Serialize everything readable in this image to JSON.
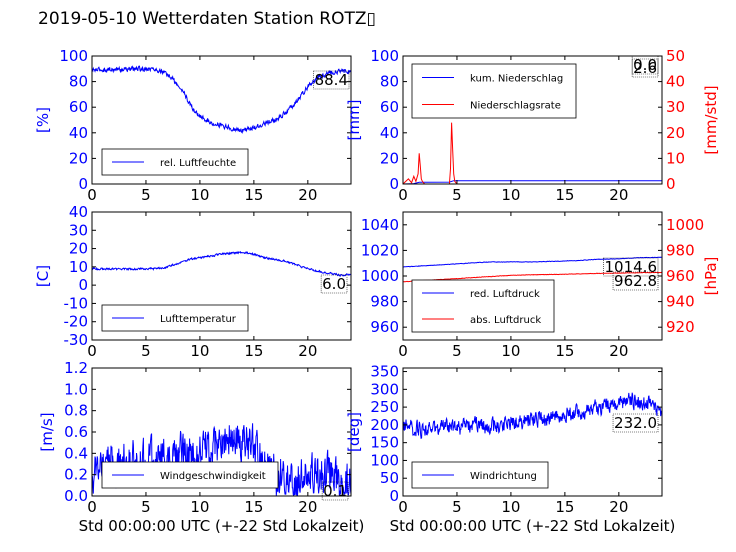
{
  "page": {
    "title": "2019-05-10 Wetterdaten Station ROTZ▯",
    "xlabel": "Std 00:00:00 UTC (+-22 Std Lokalzeit)",
    "xlim": [
      0,
      24
    ],
    "xticks": [
      0,
      5,
      10,
      15,
      20
    ]
  },
  "colors": {
    "blue": "#0000ff",
    "red": "#ff0000"
  },
  "chart_data": [
    {
      "type": "line",
      "ylabel": "[%]",
      "ylim": [
        0,
        100
      ],
      "yticks": [
        0,
        20,
        40,
        60,
        80,
        100
      ],
      "value_label": "88.4",
      "series": [
        {
          "name": "rel. Luftfeuchte",
          "color": "#0000ff",
          "x": [
            0,
            2,
            4,
            5.5,
            6.5,
            7.5,
            8,
            8.5,
            9,
            9.5,
            10,
            11,
            12,
            13,
            14,
            15,
            16,
            17,
            18,
            19,
            20,
            21,
            22,
            23,
            24
          ],
          "y": [
            89,
            89.5,
            90,
            90,
            88,
            82,
            76,
            72,
            63,
            57,
            53,
            48,
            46,
            43,
            42,
            44,
            47,
            50,
            56,
            65,
            76,
            84,
            87,
            88,
            88.4
          ],
          "noise": 2.5
        }
      ]
    },
    {
      "type": "line",
      "ylabel": "[mm]",
      "ylim": [
        0,
        100
      ],
      "yticks": [
        0,
        20,
        40,
        60,
        80,
        100
      ],
      "y2label": "[mm/std]",
      "y2lim": [
        0,
        50
      ],
      "y2ticks": [
        0,
        10,
        20,
        30,
        40,
        50
      ],
      "value_label": "2.6",
      "value_label2": "0.0",
      "series": [
        {
          "name": "kum. Niederschlag",
          "color": "#0000ff",
          "axis": "left",
          "x": [
            0,
            1,
            1.5,
            4.3,
            4.7,
            24
          ],
          "y": [
            0,
            0.3,
            1.3,
            1.5,
            2.6,
            2.6
          ],
          "noise": 0
        },
        {
          "name": "Niederschlagsrate",
          "color": "#ff0000",
          "axis": "right",
          "x": [
            0,
            0.5,
            0.8,
            1.0,
            1.2,
            1.4,
            1.5,
            1.6,
            1.7,
            1.8,
            2.0,
            4.3,
            4.4,
            4.5,
            4.6,
            4.7,
            4.8,
            5.0,
            24
          ],
          "y": [
            0,
            2,
            0.5,
            3,
            1,
            4,
            12,
            7,
            2,
            1,
            0,
            0,
            6,
            24,
            14,
            4,
            1,
            0,
            0
          ],
          "noise": 0
        }
      ]
    },
    {
      "type": "line",
      "ylabel": "[C]",
      "ylim": [
        -30,
        40
      ],
      "yticks": [
        -30,
        -20,
        -10,
        0,
        10,
        20,
        30,
        40
      ],
      "value_label": "6.0",
      "series": [
        {
          "name": "Lufttemperatur",
          "color": "#0000ff",
          "x": [
            0,
            2,
            4,
            6,
            7,
            8,
            9,
            10,
            11,
            12,
            13,
            14,
            15,
            16,
            17,
            18,
            19,
            20,
            21,
            22,
            23,
            24
          ],
          "y": [
            9,
            8.8,
            8.8,
            9,
            10,
            12,
            14,
            15,
            16,
            17,
            17.5,
            18,
            17,
            15,
            14,
            13,
            11,
            9,
            7.5,
            6.5,
            5.5,
            6.0
          ],
          "noise": 0.7
        }
      ]
    },
    {
      "type": "line",
      "ylabel": "",
      "ylim": [
        950,
        1050
      ],
      "yticks": [
        960,
        980,
        1000,
        1020,
        1040
      ],
      "y2label": "[hPa]",
      "y2lim": [
        910,
        1010
      ],
      "y2ticks": [
        920,
        940,
        960,
        980,
        1000
      ],
      "value_label": "1014.6",
      "value_label2": "962.8",
      "series": [
        {
          "name": "red. Luftdruck",
          "color": "#0000ff",
          "axis": "left",
          "x": [
            0,
            2,
            4,
            6,
            8,
            10,
            12,
            14,
            16,
            18,
            20,
            22,
            24
          ],
          "y": [
            1007,
            1008,
            1009,
            1010,
            1011,
            1011,
            1011,
            1011.5,
            1012,
            1013,
            1013.5,
            1014.3,
            1014.6
          ],
          "noise": 0.25
        },
        {
          "name": "abs. Luftdruck",
          "color": "#ff0000",
          "axis": "right",
          "x": [
            0,
            2,
            4,
            6,
            8,
            10,
            12,
            14,
            16,
            18,
            20,
            22,
            24
          ],
          "y": [
            955.5,
            956.5,
            957.5,
            958.5,
            959.5,
            960.5,
            961,
            961.2,
            961.6,
            962,
            962.3,
            962.6,
            962.8
          ],
          "noise": 0.2
        }
      ]
    },
    {
      "type": "line",
      "ylabel": "[m/s]",
      "ylim": [
        0,
        1.2
      ],
      "yticks": [
        0.0,
        0.2,
        0.4,
        0.6,
        0.8,
        1.0,
        1.2
      ],
      "yticks_labels": [
        "0.0",
        "0.2",
        "0.4",
        "0.6",
        "0.8",
        "1.0",
        "1.2"
      ],
      "value_label": "0.1",
      "series": [
        {
          "name": "Windgeschwindigkeit",
          "color": "#0000ff",
          "x": [
            0,
            1,
            2,
            3,
            4,
            5,
            6,
            7,
            8,
            9,
            10,
            11,
            12,
            13,
            14,
            15,
            16,
            17,
            18,
            19,
            20,
            21,
            22,
            23,
            24
          ],
          "y": [
            0.25,
            0.28,
            0.3,
            0.3,
            0.3,
            0.32,
            0.35,
            0.35,
            0.38,
            0.4,
            0.4,
            0.45,
            0.5,
            0.55,
            0.5,
            0.45,
            0.3,
            0.2,
            0.15,
            0.15,
            0.18,
            0.2,
            0.2,
            0.15,
            0.1
          ],
          "noise": 0.28
        }
      ]
    },
    {
      "type": "line",
      "ylabel": "[deg]",
      "ylim": [
        0,
        360
      ],
      "yticks": [
        0,
        50,
        100,
        150,
        200,
        250,
        300,
        350
      ],
      "value_label": "232.0",
      "series": [
        {
          "name": "Windrichtung",
          "color": "#0000ff",
          "x": [
            0,
            1,
            2,
            3,
            4,
            5,
            6,
            7,
            8,
            9,
            10,
            11,
            12,
            13,
            14,
            15,
            16,
            17,
            18,
            19,
            20,
            21,
            22,
            23,
            24
          ],
          "y": [
            200,
            190,
            185,
            190,
            195,
            190,
            195,
            200,
            195,
            200,
            205,
            210,
            220,
            215,
            225,
            230,
            235,
            240,
            250,
            255,
            260,
            270,
            265,
            260,
            232
          ],
          "noise": 30
        }
      ]
    }
  ]
}
